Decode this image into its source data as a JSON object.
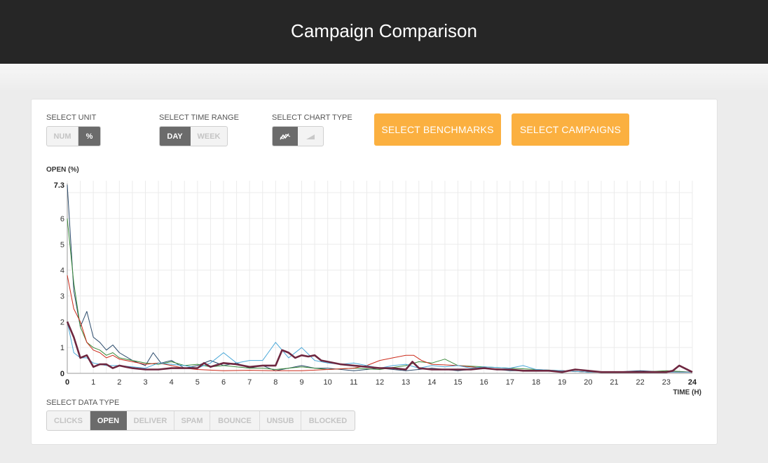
{
  "header": {
    "title": "Campaign Comparison"
  },
  "controls": {
    "unit": {
      "label": "SELECT UNIT",
      "options": [
        "NUM",
        "%"
      ],
      "selected": 1
    },
    "time_range": {
      "label": "SELECT TIME RANGE",
      "options": [
        "DAY",
        "WEEK"
      ],
      "selected": 0
    },
    "chart_type": {
      "label": "SELECT CHART TYPE",
      "options": [
        "line-chart-icon",
        "area-chart-icon"
      ],
      "selected": 0
    },
    "benchmarks_button": "SELECT BENCHMARKS",
    "campaigns_button": "SELECT CAMPAIGNS",
    "data_type": {
      "label": "SELECT DATA TYPE",
      "options": [
        "CLICKS",
        "OPEN",
        "DELIVER",
        "SPAM",
        "BOUNCE",
        "UNSUB",
        "BLOCKED"
      ],
      "selected": 1
    }
  },
  "chart_data": {
    "type": "line",
    "ylabel": "OPEN (%)",
    "xlabel": "TIME (H)",
    "ylim": [
      0,
      7.3
    ],
    "xlim": [
      0,
      24
    ],
    "y_ticks": [
      0,
      1,
      2,
      3,
      4,
      5,
      6,
      7.3
    ],
    "x_ticks": [
      0,
      1,
      2,
      3,
      4,
      5,
      6,
      7,
      8,
      9,
      10,
      11,
      12,
      13,
      14,
      15,
      16,
      17,
      18,
      19,
      20,
      21,
      22,
      23,
      24
    ],
    "grid": true,
    "series": [
      {
        "color": "#2a4a6b",
        "width": 1,
        "x": [
          0,
          0.25,
          0.5,
          0.75,
          1,
          1.25,
          1.5,
          1.75,
          2,
          2.5,
          3,
          3.3,
          3.6,
          4,
          4.5,
          5,
          5.5,
          6,
          6.5,
          7,
          7.5,
          8,
          8.5,
          9,
          9.5,
          10,
          11,
          12,
          13,
          14,
          15,
          16,
          17,
          18,
          19,
          20,
          21,
          22,
          23,
          24
        ],
        "y": [
          7.3,
          3.2,
          1.8,
          2.4,
          1.4,
          1.2,
          0.9,
          1.1,
          0.8,
          0.5,
          0.3,
          0.8,
          0.4,
          0.5,
          0.2,
          0.3,
          0.5,
          0.3,
          0.4,
          0.2,
          0.3,
          0.1,
          0.2,
          0.3,
          0.2,
          0.2,
          0.1,
          0.2,
          0.1,
          0.2,
          0.1,
          0.2,
          0.1,
          0.1,
          0.1,
          0.05,
          0.05,
          0.1,
          0.05,
          0.05
        ]
      },
      {
        "color": "#3a8a3a",
        "width": 1,
        "x": [
          0,
          0.25,
          0.5,
          0.75,
          1,
          1.25,
          1.5,
          1.75,
          2,
          2.5,
          3,
          3.5,
          4,
          4.5,
          5,
          5.5,
          6,
          6.5,
          7,
          7.5,
          8,
          8.5,
          9,
          9.5,
          10,
          11,
          12,
          13,
          13.5,
          14,
          14.5,
          15,
          16,
          17,
          18,
          19,
          20,
          21,
          22,
          23,
          24
        ],
        "y": [
          6.0,
          3.5,
          1.8,
          1.2,
          1.0,
          0.9,
          0.7,
          0.8,
          0.6,
          0.5,
          0.4,
          0.35,
          0.45,
          0.3,
          0.35,
          0.25,
          0.3,
          0.25,
          0.2,
          0.2,
          0.15,
          0.2,
          0.25,
          0.2,
          0.15,
          0.2,
          0.15,
          0.3,
          0.45,
          0.4,
          0.55,
          0.3,
          0.25,
          0.2,
          0.15,
          0.1,
          0.05,
          0.05,
          0.05,
          0.1,
          0.05
        ]
      },
      {
        "color": "#cc2a1a",
        "width": 1,
        "x": [
          0,
          0.25,
          0.5,
          0.75,
          1,
          1.25,
          1.5,
          1.75,
          2,
          2.5,
          3,
          3.5,
          4,
          4.5,
          5,
          6,
          7,
          8,
          9,
          10,
          11,
          11.5,
          12,
          12.5,
          13,
          13.3,
          13.6,
          14,
          15,
          16,
          17,
          18,
          19,
          20,
          21,
          22,
          23,
          24
        ],
        "y": [
          3.8,
          2.5,
          2.0,
          1.2,
          0.9,
          0.8,
          0.6,
          0.7,
          0.55,
          0.45,
          0.35,
          0.4,
          0.3,
          0.2,
          0.15,
          0.1,
          0.12,
          0.1,
          0.1,
          0.15,
          0.2,
          0.3,
          0.5,
          0.6,
          0.7,
          0.7,
          0.5,
          0.35,
          0.3,
          0.2,
          0.15,
          0.1,
          0.1,
          0.05,
          0.05,
          0.05,
          0.05,
          0.05
        ]
      },
      {
        "color": "#4aa8d8",
        "width": 1,
        "x": [
          0,
          0.25,
          0.5,
          0.75,
          1,
          1.25,
          1.5,
          2,
          2.5,
          3,
          3.5,
          4,
          4.5,
          5,
          5.5,
          6,
          6.5,
          7,
          7.5,
          8,
          8.5,
          9,
          9.5,
          10,
          10.5,
          11,
          11.5,
          12,
          12.5,
          13,
          13.5,
          14,
          14.5,
          15,
          15.5,
          16,
          17,
          17.5,
          18,
          19,
          20,
          21,
          22,
          23,
          24
        ],
        "y": [
          2.0,
          0.8,
          0.6,
          0.6,
          0.4,
          0.35,
          0.3,
          0.3,
          0.25,
          0.2,
          0.4,
          0.35,
          0.3,
          0.2,
          0.4,
          0.8,
          0.4,
          0.5,
          0.5,
          1.2,
          0.6,
          1.0,
          0.5,
          0.4,
          0.35,
          0.4,
          0.3,
          0.2,
          0.3,
          0.35,
          0.2,
          0.3,
          0.25,
          0.3,
          0.2,
          0.25,
          0.2,
          0.3,
          0.15,
          0.1,
          0.05,
          0.05,
          0.05,
          0.05,
          0.05
        ]
      },
      {
        "color": "#6e2740",
        "width": 2.6,
        "x": [
          0,
          0.25,
          0.5,
          0.75,
          1,
          1.25,
          1.5,
          1.75,
          2,
          2.25,
          2.5,
          3,
          3.5,
          4,
          4.5,
          5,
          5.25,
          5.5,
          6,
          6.5,
          7,
          7.5,
          8,
          8.25,
          8.5,
          8.75,
          9,
          9.25,
          9.5,
          9.75,
          10,
          10.5,
          11,
          11.5,
          12,
          12.5,
          13,
          13.25,
          13.5,
          14,
          14.5,
          15,
          15.5,
          16,
          16.5,
          17,
          17.5,
          18,
          18.5,
          19,
          19.5,
          20,
          20.5,
          21,
          21.5,
          22,
          22.5,
          23,
          23.25,
          23.5,
          24
        ],
        "y": [
          2.0,
          1.4,
          0.6,
          0.7,
          0.25,
          0.35,
          0.35,
          0.2,
          0.3,
          0.25,
          0.2,
          0.15,
          0.15,
          0.2,
          0.2,
          0.2,
          0.4,
          0.25,
          0.4,
          0.35,
          0.25,
          0.3,
          0.3,
          0.9,
          0.8,
          0.6,
          0.7,
          0.65,
          0.7,
          0.5,
          0.45,
          0.35,
          0.3,
          0.25,
          0.2,
          0.2,
          0.15,
          0.45,
          0.2,
          0.15,
          0.15,
          0.15,
          0.15,
          0.2,
          0.15,
          0.15,
          0.1,
          0.1,
          0.1,
          0.05,
          0.15,
          0.1,
          0.05,
          0.05,
          0.05,
          0.05,
          0.05,
          0.05,
          0.1,
          0.3,
          0.05
        ]
      }
    ]
  }
}
